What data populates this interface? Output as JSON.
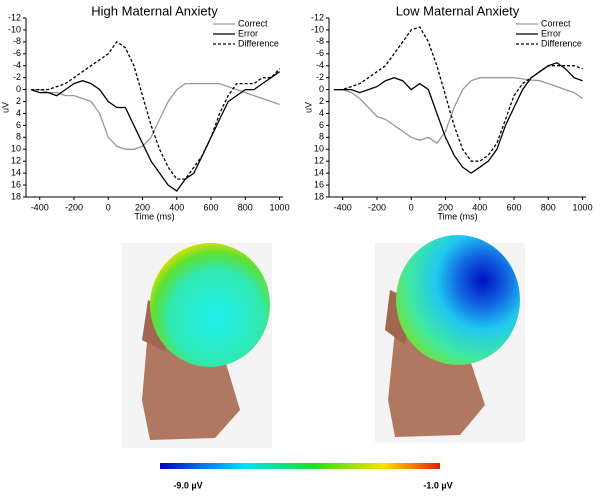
{
  "chart_data": [
    {
      "type": "line",
      "title": "High Maternal Anxiety",
      "x_label": "Time (ms)",
      "y_label": "uV",
      "x": [
        -450,
        -400,
        -350,
        -300,
        -250,
        -200,
        -150,
        -100,
        -50,
        0,
        50,
        100,
        150,
        200,
        250,
        300,
        350,
        400,
        450,
        500,
        550,
        600,
        650,
        700,
        750,
        800,
        850,
        900,
        950,
        1000
      ],
      "series": [
        {
          "name": "Correct",
          "color": "#999999",
          "dashed": false,
          "values": [
            0,
            0,
            0.5,
            0.5,
            1,
            1,
            1.5,
            2,
            4,
            8,
            9.5,
            10,
            10,
            9.5,
            8,
            5,
            2,
            0,
            -1,
            -1,
            -1,
            -1,
            -1,
            -0.5,
            0,
            0.5,
            1,
            1.5,
            2,
            2.5
          ]
        },
        {
          "name": "Error",
          "color": "#000000",
          "dashed": false,
          "values": [
            0,
            0.5,
            0.5,
            1,
            0,
            -1,
            -1.5,
            -1,
            0,
            2,
            3,
            3,
            6,
            9,
            12,
            14,
            16,
            17,
            15,
            14,
            11,
            8,
            5,
            2,
            1,
            0,
            0,
            -1,
            -2,
            -3
          ]
        },
        {
          "name": "Difference",
          "color": "#000000",
          "dashed": true,
          "values": [
            0,
            0,
            0,
            -0.5,
            -1,
            -2,
            -3,
            -4,
            -5,
            -6,
            -8,
            -7,
            -4,
            1,
            6,
            10,
            13,
            15,
            15,
            13,
            11,
            8,
            4,
            1,
            -1,
            -1,
            -1,
            -2,
            -2,
            -3.5
          ]
        }
      ],
      "xlim": [
        -480,
        1020
      ],
      "xticks": [
        -400,
        -200,
        0,
        200,
        400,
        600,
        800,
        1000
      ],
      "ylim": [
        -12,
        18
      ],
      "yticks": [
        -12,
        -10,
        -8,
        -6,
        -4,
        -2,
        0,
        2,
        4,
        6,
        8,
        10,
        12,
        14,
        16,
        18
      ],
      "y_inverted": true,
      "legend": "upper right"
    },
    {
      "type": "line",
      "title": "Low Maternal Anxiety",
      "x_label": "Time (ms)",
      "y_label": "uV",
      "x": [
        -450,
        -400,
        -350,
        -300,
        -250,
        -200,
        -150,
        -100,
        -50,
        0,
        50,
        100,
        150,
        200,
        250,
        300,
        350,
        400,
        450,
        500,
        550,
        600,
        650,
        700,
        750,
        800,
        850,
        900,
        950,
        1000
      ],
      "series": [
        {
          "name": "Correct",
          "color": "#999999",
          "dashed": false,
          "values": [
            0,
            0,
            0.5,
            1.5,
            3,
            4.5,
            5,
            6,
            7,
            8,
            8.5,
            8,
            9,
            7,
            3,
            0,
            -1.5,
            -2,
            -2,
            -2,
            -2,
            -2,
            -1.8,
            -1.6,
            -1.5,
            -1,
            -0.5,
            0,
            0.5,
            1.5
          ]
        },
        {
          "name": "Error",
          "color": "#000000",
          "dashed": false,
          "values": [
            0,
            0,
            0,
            0.5,
            0,
            -0.5,
            -1.5,
            -2,
            -1.5,
            0,
            -1,
            0,
            4,
            8,
            11,
            13,
            14,
            13,
            12,
            10,
            6,
            3,
            0,
            -2,
            -3,
            -4,
            -4.5,
            -3.5,
            -2,
            -1.5
          ]
        },
        {
          "name": "Difference",
          "color": "#000000",
          "dashed": true,
          "values": [
            0,
            0,
            -0.5,
            -1,
            -2,
            -3,
            -4,
            -6,
            -8,
            -10,
            -10.5,
            -8,
            -4,
            1,
            6,
            10,
            12,
            12,
            11,
            9,
            5,
            1,
            -1,
            -2,
            -3,
            -4,
            -4,
            -4,
            -4,
            -3.5
          ]
        }
      ],
      "xlim": [
        -480,
        1020
      ],
      "xticks": [
        -400,
        -200,
        0,
        200,
        400,
        600,
        800,
        1000
      ],
      "ylim": [
        -12,
        18
      ],
      "yticks": [
        -12,
        -10,
        -8,
        -6,
        -4,
        -2,
        0,
        2,
        4,
        6,
        8,
        10,
        12,
        14,
        16,
        18
      ],
      "y_inverted": true,
      "legend": "upper right"
    }
  ],
  "colorbar": {
    "min_label": "-9.0 µV",
    "max_label": "-1.0 µV"
  }
}
